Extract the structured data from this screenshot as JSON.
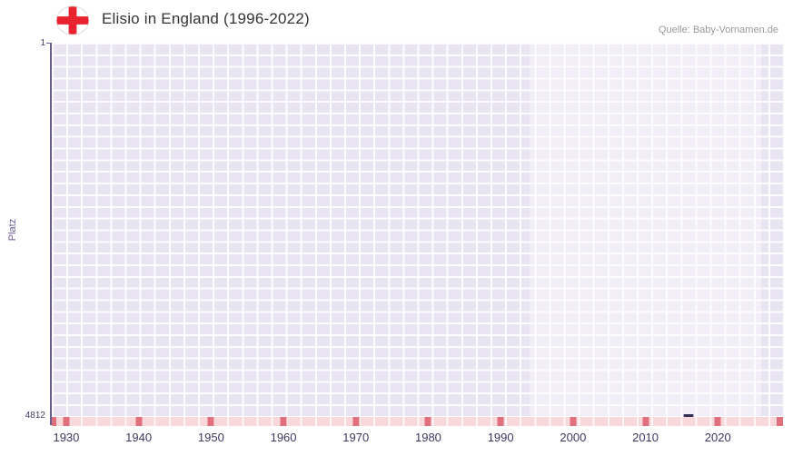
{
  "header": {
    "title": "Elisio in England (1996-2022)",
    "source": "Quelle: Baby-Vornamen.de"
  },
  "chart_data": {
    "type": "line",
    "title": "Elisio in England (1996-2022)",
    "xlabel": "",
    "ylabel": "Platz",
    "grid": "on",
    "legend": "off",
    "y_axis": {
      "min": 1,
      "max": 4812,
      "min_label": "1",
      "max_label": "4812",
      "inverted": true
    },
    "x_range": [
      1928,
      2029
    ],
    "x_ticks": [
      1930,
      1940,
      1950,
      1960,
      1970,
      1980,
      1990,
      2000,
      2010,
      2020
    ],
    "data_period_band": {
      "from": 1994,
      "to": 2026
    },
    "series": [
      {
        "name": "Elisio",
        "points": [
          {
            "year": 2016,
            "rank": 4812
          }
        ]
      }
    ],
    "colors": {
      "plot_background": "#e8e4f2",
      "axis_line": "#6b5b95",
      "tick_label": "#3c3860",
      "strip_background": "#f7d8db",
      "strip_mark": "#e0707c",
      "series": "#332e54",
      "flag_cross": "#e8232f"
    }
  }
}
